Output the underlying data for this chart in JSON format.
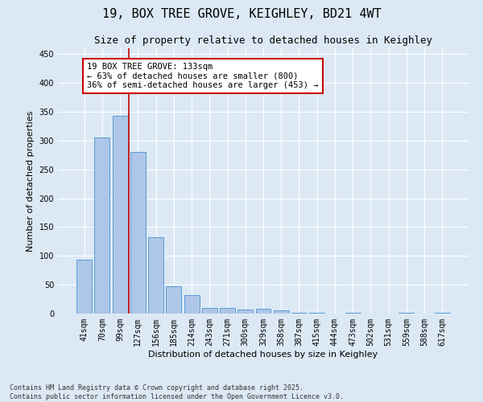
{
  "title": "19, BOX TREE GROVE, KEIGHLEY, BD21 4WT",
  "subtitle": "Size of property relative to detached houses in Keighley",
  "xlabel": "Distribution of detached houses by size in Keighley",
  "ylabel": "Number of detached properties",
  "categories": [
    "41sqm",
    "70sqm",
    "99sqm",
    "127sqm",
    "156sqm",
    "185sqm",
    "214sqm",
    "243sqm",
    "271sqm",
    "300sqm",
    "329sqm",
    "358sqm",
    "387sqm",
    "415sqm",
    "444sqm",
    "473sqm",
    "502sqm",
    "531sqm",
    "559sqm",
    "588sqm",
    "617sqm"
  ],
  "values": [
    93,
    305,
    343,
    280,
    133,
    47,
    32,
    10,
    10,
    7,
    8,
    5,
    2,
    1,
    0,
    2,
    0,
    0,
    1,
    0,
    1
  ],
  "bar_color": "#aec6e8",
  "bar_edge_color": "#5b9bd5",
  "background_color": "#dce9f5",
  "grid_color": "#ffffff",
  "vline_index": 3,
  "vline_color": "#cc0000",
  "annotation_text": "19 BOX TREE GROVE: 133sqm\n← 63% of detached houses are smaller (800)\n36% of semi-detached houses are larger (453) →",
  "annotation_box_color": "#ffffff",
  "annotation_box_edge": "#cc0000",
  "ylim": [
    0,
    460
  ],
  "yticks": [
    0,
    50,
    100,
    150,
    200,
    250,
    300,
    350,
    400,
    450
  ],
  "footer": "Contains HM Land Registry data © Crown copyright and database right 2025.\nContains public sector information licensed under the Open Government Licence v3.0.",
  "title_fontsize": 11,
  "subtitle_fontsize": 9,
  "axis_label_fontsize": 8,
  "tick_fontsize": 7,
  "annotation_fontsize": 7.5,
  "footer_fontsize": 6
}
